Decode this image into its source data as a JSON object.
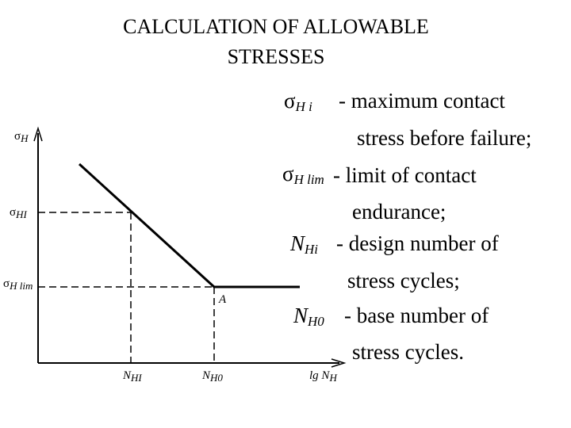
{
  "header": {
    "title": [
      "CALCULATION OF ALLOWABLE",
      "STRESSES"
    ]
  },
  "definitions": [
    {
      "symbol": "σ",
      "sub": "H i",
      "lines": [
        "- maximum contact",
        "stress before failure;"
      ]
    },
    {
      "symbol": "σ",
      "sub": "H lim",
      "lines": [
        "-  limit of contact",
        "endurance;"
      ]
    },
    {
      "symbol": "N",
      "sub": "Hi",
      "lines": [
        "- design number of",
        "stress cycles;"
      ]
    },
    {
      "symbol": "N",
      "sub": "H0",
      "lines": [
        "- base number of",
        "stress cycles."
      ]
    }
  ],
  "diagram": {
    "y_axis": {
      "symbol": "σ",
      "sub": "H"
    },
    "x_axis": {
      "prefix": "lg",
      "symbol": "N",
      "sub": "H"
    },
    "y_labels": [
      {
        "symbol": "σ",
        "sub": "HI"
      },
      {
        "symbol": "σ",
        "sub": "H lim"
      }
    ],
    "x_labels": [
      {
        "symbol": "N",
        "sub": "HI"
      },
      {
        "symbol": "N",
        "sub": "H0"
      }
    ],
    "point": "A"
  }
}
